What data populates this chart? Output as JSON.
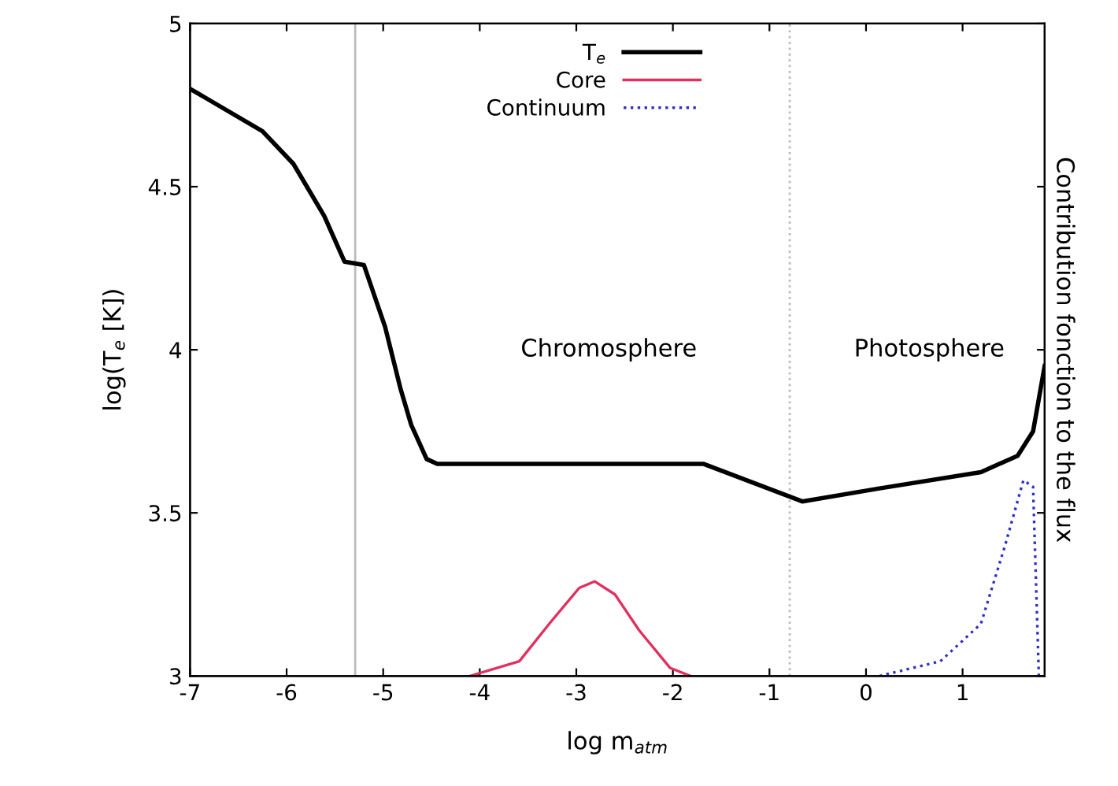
{
  "chart_data": {
    "type": "line",
    "xlabel": "log m$_{atm}$",
    "ylabel": "log(T$_{e}$ [K])",
    "y2label": "Contribution fonction to the flux",
    "xlim": [
      -7,
      1.85
    ],
    "ylim": [
      3,
      5
    ],
    "xticks": [
      -7,
      -6,
      -5,
      -4,
      -3,
      -2,
      -1,
      0,
      1
    ],
    "yticks": [
      3,
      3.5,
      4,
      4.5,
      5
    ],
    "grid": false,
    "legend": "top right",
    "marker": "none",
    "ref_lines": [
      {
        "axis": "x",
        "value": -5.29,
        "label": null,
        "color": "#bbbbbb"
      },
      {
        "axis": "x",
        "value": -0.79,
        "label": null,
        "color": "#bbbbbb",
        "line_style": "dotted"
      }
    ],
    "annotations": [
      "Chromosphere",
      "Photosphere"
    ],
    "series": [
      {
        "name": "T$_{e}$",
        "color": "#000000",
        "line_style": "solid",
        "x": [
          -7,
          -6.25,
          -5.93,
          -5.61,
          -5.4,
          -5.2,
          -4.98,
          -4.82,
          -4.71,
          -4.55,
          -4.44,
          -1.68,
          -0.66,
          0.14,
          1.19,
          1.57,
          1.73,
          1.85
        ],
        "values": [
          4.8,
          4.67,
          4.57,
          4.41,
          4.27,
          4.26,
          4.07,
          3.88,
          3.77,
          3.665,
          3.65,
          3.65,
          3.535,
          3.575,
          3.625,
          3.675,
          3.75,
          3.95
        ]
      },
      {
        "name": "Core",
        "color": "#e0305f",
        "line_style": "solid",
        "x": [
          -4.1,
          -3.59,
          -3.28,
          -2.97,
          -2.81,
          -2.6,
          -2.35,
          -2.03,
          -1.82
        ],
        "values": [
          3,
          3.045,
          3.16,
          3.27,
          3.29,
          3.25,
          3.14,
          3.025,
          3
        ]
      },
      {
        "name": "Continuum",
        "color": "#3030c0",
        "line_style": "dotted",
        "x": [
          0.14,
          0.77,
          1.19,
          1.44,
          1.63,
          1.73,
          1.79
        ],
        "values": [
          3,
          3.045,
          3.16,
          3.4,
          3.6,
          3.58,
          3
        ]
      }
    ]
  }
}
